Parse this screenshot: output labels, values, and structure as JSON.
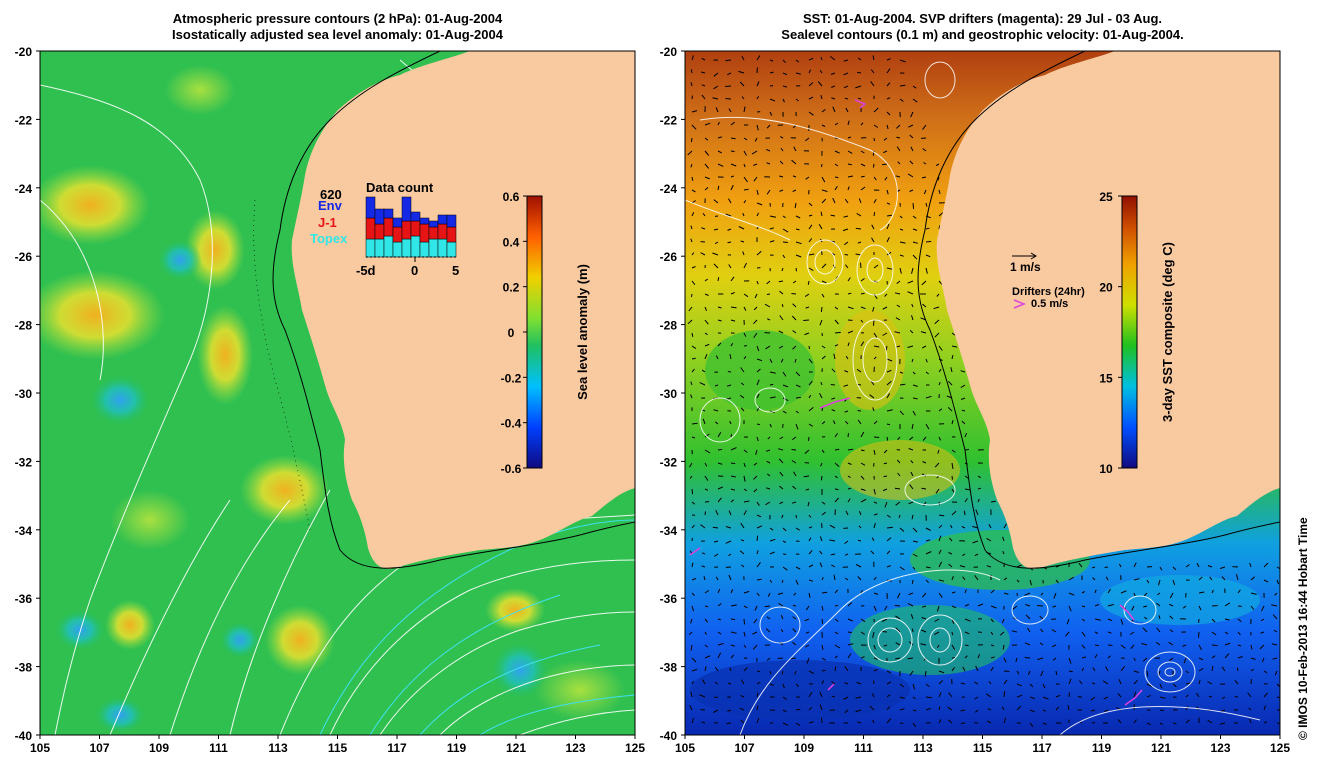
{
  "left_panel": {
    "title_line1": "Atmospheric pressure contours (2 hPa): 01-Aug-2004",
    "title_line2": "Isostatically adjusted sea level anomaly: 01-Aug-2004",
    "lat_ticks": [
      "-20",
      "-22",
      "-24",
      "-26",
      "-28",
      "-30",
      "-32",
      "-34",
      "-36",
      "-38",
      "-40"
    ],
    "lon_ticks": [
      "105",
      "107",
      "109",
      "111",
      "113",
      "115",
      "117",
      "119",
      "121",
      "123",
      "125"
    ],
    "colorbar": {
      "label": "Sea level anomaly (m)",
      "ticks": [
        "0.6",
        "0.4",
        "0.2",
        "0",
        "-0.2",
        "-0.4",
        "-0.6"
      ]
    },
    "data_count": {
      "total": "620",
      "title": "Data count",
      "legend": [
        {
          "label": "Env",
          "color": "#1428e6"
        },
        {
          "label": "J-1",
          "color": "#e61414"
        },
        {
          "label": "Topex",
          "color": "#30e6e6"
        }
      ],
      "x_ticks": [
        "-5d",
        "0",
        "5"
      ],
      "bars": [
        {
          "topex": 0.3,
          "j1": 0.35,
          "env": 0.35
        },
        {
          "topex": 0.3,
          "j1": 0.25,
          "env": 0.25
        },
        {
          "topex": 0.35,
          "j1": 0.3,
          "env": 0.15
        },
        {
          "topex": 0.25,
          "j1": 0.25,
          "env": 0.15
        },
        {
          "topex": 0.3,
          "j1": 0.3,
          "env": 0.4
        },
        {
          "topex": 0.35,
          "j1": 0.25,
          "env": 0.15
        },
        {
          "topex": 0.25,
          "j1": 0.3,
          "env": 0.1
        },
        {
          "topex": 0.3,
          "j1": 0.2,
          "env": 0.1
        },
        {
          "topex": 0.3,
          "j1": 0.25,
          "env": 0.15
        },
        {
          "topex": 0.25,
          "j1": 0.25,
          "env": 0.2
        }
      ]
    }
  },
  "right_panel": {
    "title_line1": "SST: 01-Aug-2004. SVP drifters (magenta): 29 Jul - 03 Aug.",
    "title_line2": "Sealevel contours (0.1 m) and geostrophic velocity: 01-Aug-2004.",
    "lat_ticks": [
      "-20",
      "-22",
      "-24",
      "-26",
      "-28",
      "-30",
      "-32",
      "-34",
      "-36",
      "-38",
      "-40"
    ],
    "lon_ticks": [
      "105",
      "107",
      "109",
      "111",
      "113",
      "115",
      "117",
      "119",
      "121",
      "123",
      "125"
    ],
    "velocity_scale_label": "1 m/s",
    "drifters_label": "Drifters (24hr)",
    "drifter_speed_label": "0.5 m/s",
    "colorbar": {
      "label": "3-day SST composite (deg C)",
      "ticks": [
        "25",
        "20",
        "15",
        "10"
      ]
    }
  },
  "credit": "© IMOS 10-Feb-2013 16:44 Hobart Time",
  "colors": {
    "land": "#f9c9a0",
    "drifter": "#e040e0",
    "sla_ramp": [
      "#100a80",
      "#0040ff",
      "#00c0ff",
      "#20c060",
      "#80e030",
      "#f0d000",
      "#ff6000",
      "#a01000"
    ],
    "sst_ramp": [
      "#100a80",
      "#0050ff",
      "#00c0e0",
      "#20c020",
      "#d0e000",
      "#f0a000",
      "#d05000",
      "#901000"
    ]
  }
}
